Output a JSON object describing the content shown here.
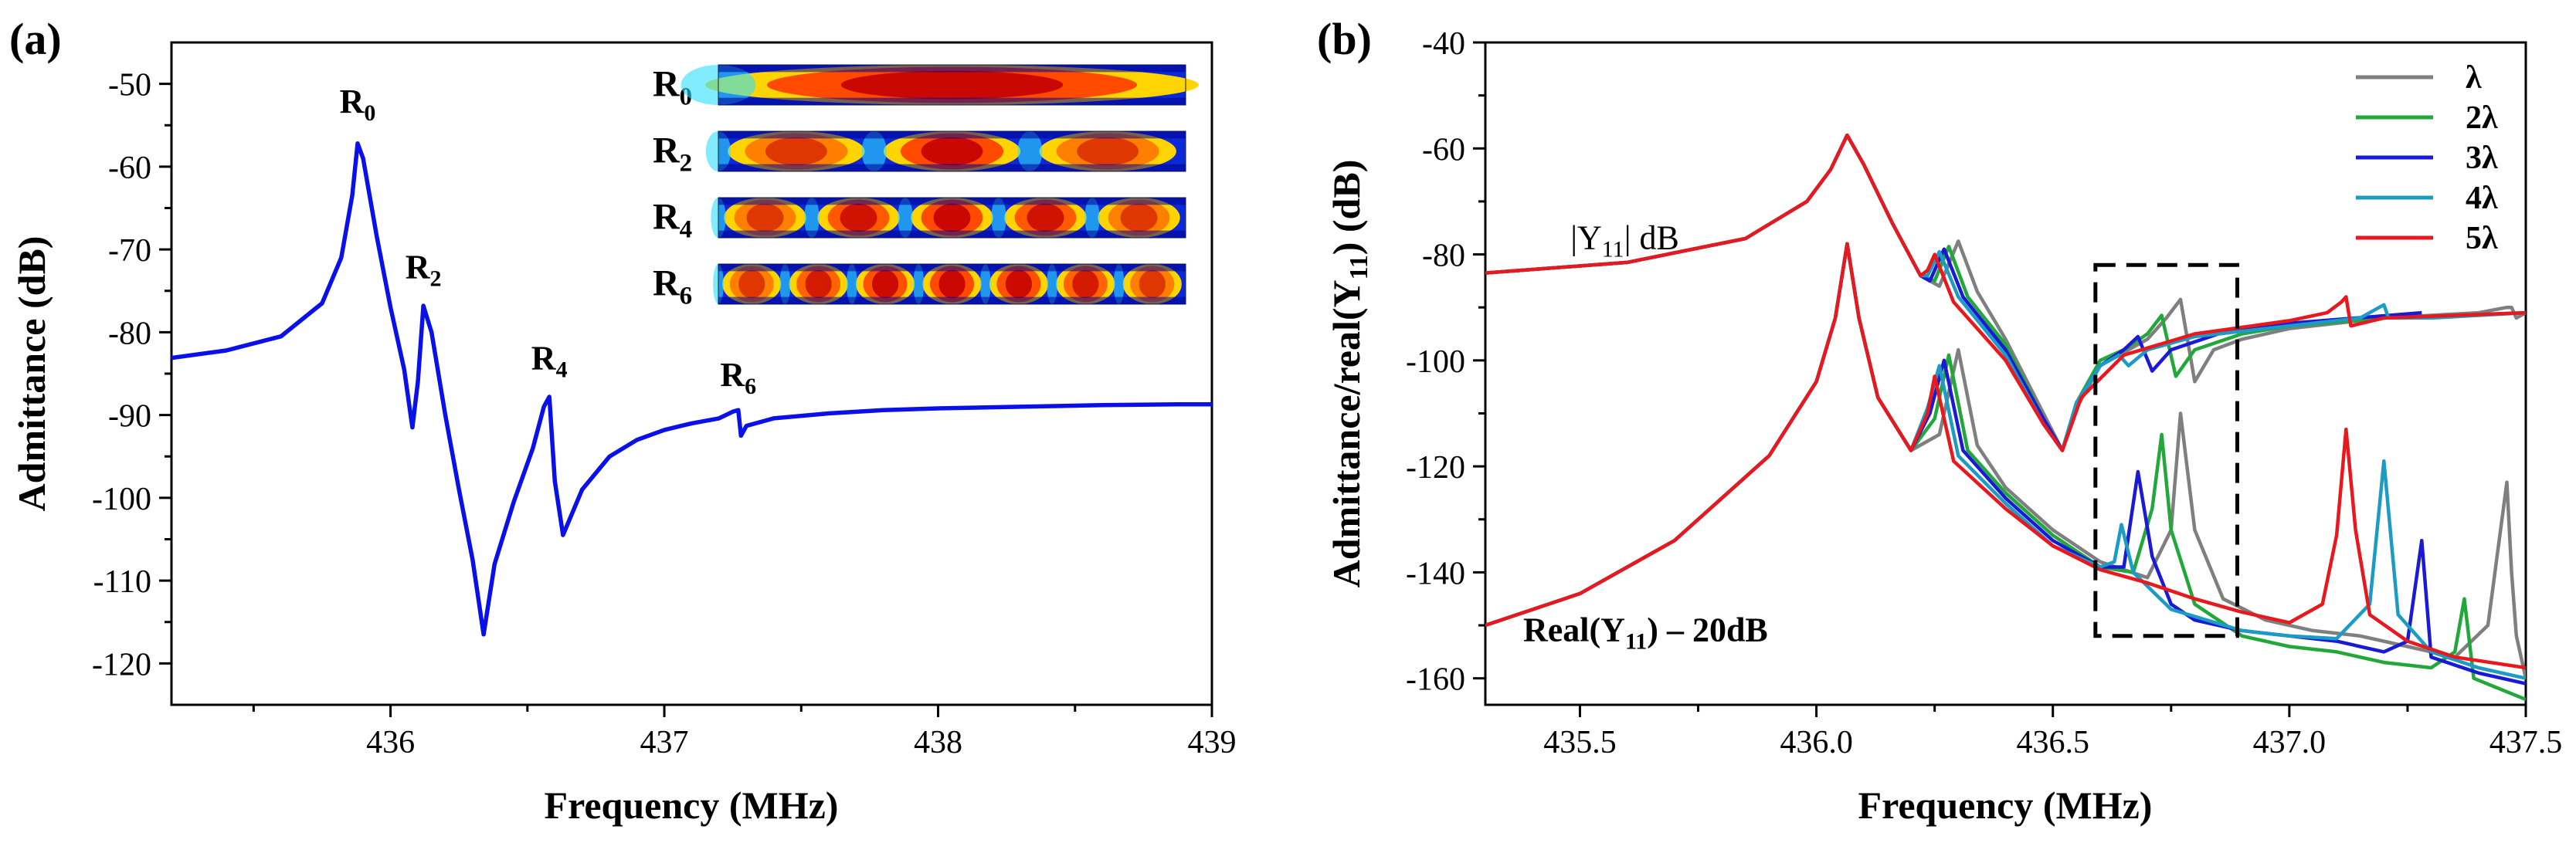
{
  "chart_data": [
    {
      "panel_label": "(a)",
      "type": "line",
      "xlabel": "Frequency (MHz)",
      "ylabel": "Admittance (dB)",
      "xlim": [
        435.2,
        439.0
      ],
      "ylim": [
        -125,
        -45
      ],
      "xticks": [
        436,
        437,
        438,
        439
      ],
      "yticks": [
        -50,
        -60,
        -70,
        -80,
        -90,
        -100,
        -110,
        -120
      ],
      "series": [
        {
          "name": "Admittance",
          "color": "#0a10e8",
          "x": [
            435.2,
            435.4,
            435.6,
            435.75,
            435.82,
            435.86,
            435.88,
            435.9,
            435.95,
            436.0,
            436.05,
            436.08,
            436.1,
            436.12,
            436.15,
            436.2,
            436.25,
            436.3,
            436.34,
            436.38,
            436.45,
            436.52,
            436.56,
            436.58,
            436.6,
            436.63,
            436.7,
            436.8,
            436.9,
            437.0,
            437.1,
            437.2,
            437.25,
            437.27,
            437.28,
            437.3,
            437.4,
            437.6,
            437.8,
            438.0,
            438.3,
            438.6,
            438.9,
            439.0
          ],
          "y": [
            -83.1,
            -82.2,
            -80.5,
            -76.5,
            -71.0,
            -63.5,
            -57.2,
            -59.0,
            -68.5,
            -77.0,
            -84.5,
            -91.5,
            -86.0,
            -76.8,
            -80.0,
            -90.0,
            -99.0,
            -107.5,
            -116.5,
            -108.0,
            -100.5,
            -94.0,
            -89.0,
            -87.8,
            -98.0,
            -104.5,
            -99.0,
            -95.0,
            -93.0,
            -91.8,
            -91.0,
            -90.4,
            -89.6,
            -89.4,
            -92.5,
            -91.3,
            -90.4,
            -89.8,
            -89.4,
            -89.2,
            -89.0,
            -88.8,
            -88.7,
            -88.7
          ]
        }
      ],
      "annotations": [
        {
          "label": "R",
          "subscript": "0",
          "x": 435.88,
          "y": -53.5
        },
        {
          "label": "R",
          "subscript": "2",
          "x": 436.12,
          "y": -73.5
        },
        {
          "label": "R",
          "subscript": "4",
          "x": 436.58,
          "y": -84.5
        },
        {
          "label": "R",
          "subscript": "6",
          "x": 437.27,
          "y": -86.5
        }
      ],
      "inset": {
        "rows": [
          {
            "label": "R",
            "subscript": "0",
            "antinodes": 1
          },
          {
            "label": "R",
            "subscript": "2",
            "antinodes": 3
          },
          {
            "label": "R",
            "subscript": "4",
            "antinodes": 5
          },
          {
            "label": "R",
            "subscript": "6",
            "antinodes": 7
          }
        ]
      }
    },
    {
      "panel_label": "(b)",
      "type": "line",
      "xlabel": "Frequency (MHz)",
      "ylabel_parts": [
        "Admittance/real(Y",
        "11",
        ") (dB)"
      ],
      "xlim": [
        435.3,
        437.5
      ],
      "ylim": [
        -165,
        -40
      ],
      "xticks": [
        435.5,
        436.0,
        436.5,
        437.0,
        437.5
      ],
      "xtick_labels": [
        "435.5",
        "436.0",
        "436.5",
        "437.0",
        "437.5"
      ],
      "yticks": [
        -40,
        -60,
        -80,
        -100,
        -120,
        -140,
        -160
      ],
      "text_annotations": [
        {
          "pre": "|Y",
          "sub": "11",
          "post": "| dB",
          "x": 435.48,
          "y": -79
        },
        {
          "pre": "Real(Y",
          "sub": "11",
          "post": ") – 20dB",
          "x": 435.38,
          "y": -153
        }
      ],
      "highlight_box": {
        "x0": 436.59,
        "x1": 436.89,
        "y0": -152,
        "y1": -82
      },
      "legend": {
        "position": "top-right"
      },
      "series": [
        {
          "name": "λ",
          "color": "#7f7f7f",
          "abs_x": [
            435.3,
            435.6,
            435.85,
            435.98,
            436.03,
            436.065,
            436.1,
            436.16,
            436.22,
            436.26,
            436.3,
            436.34,
            436.4,
            436.48,
            436.52,
            436.55,
            436.6,
            436.7,
            436.74,
            436.77,
            436.8,
            436.84,
            436.9,
            437.0,
            437.1,
            437.2,
            437.3,
            437.4,
            437.46,
            437.47,
            437.48,
            437.5
          ],
          "abs_y": [
            -83.5,
            -81.5,
            -77,
            -70,
            -64,
            -57.5,
            -63,
            -74,
            -84,
            -86,
            -77.5,
            -87,
            -96,
            -110,
            -117,
            -109,
            -101,
            -96,
            -92,
            -88.5,
            -104,
            -98,
            -96,
            -94,
            -93,
            -92,
            -91.5,
            -91,
            -90,
            -90,
            -92,
            -91
          ],
          "re_x": [
            435.3,
            435.5,
            435.7,
            435.9,
            436.0,
            436.04,
            436.065,
            436.09,
            436.13,
            436.2,
            436.26,
            436.3,
            436.34,
            436.4,
            436.5,
            436.6,
            436.7,
            436.75,
            436.77,
            436.8,
            436.86,
            436.95,
            437.05,
            437.15,
            437.25,
            437.35,
            437.42,
            437.46,
            437.47,
            437.48,
            437.5
          ],
          "re_y": [
            -150,
            -144,
            -134,
            -118,
            -104,
            -92,
            -78,
            -92,
            -107,
            -117,
            -114,
            -98,
            -116,
            -124,
            -132,
            -138,
            -141,
            -132,
            -110,
            -132,
            -145,
            -149,
            -151,
            -152,
            -154,
            -156,
            -150,
            -123,
            -140,
            -152,
            -160
          ]
        },
        {
          "name": "2λ",
          "color": "#22a83a",
          "abs_x": [
            435.3,
            435.6,
            435.85,
            435.98,
            436.03,
            436.065,
            436.1,
            436.16,
            436.22,
            436.25,
            436.28,
            436.32,
            436.4,
            436.48,
            436.52,
            436.55,
            436.6,
            436.65,
            436.7,
            436.73,
            436.76,
            436.8,
            436.9,
            437.0,
            437.2,
            437.5
          ],
          "abs_y": [
            -83.5,
            -81.5,
            -77,
            -70,
            -64,
            -57.5,
            -63,
            -74,
            -84,
            -85,
            -78.5,
            -88,
            -97,
            -111,
            -117,
            -108,
            -100,
            -98,
            -95,
            -91.5,
            -103,
            -98,
            -95,
            -93.5,
            -92,
            -91
          ],
          "re_x": [
            435.3,
            435.5,
            435.7,
            435.9,
            436.0,
            436.04,
            436.065,
            436.09,
            436.13,
            436.2,
            436.25,
            436.28,
            436.32,
            436.4,
            436.5,
            436.6,
            436.67,
            436.71,
            436.73,
            436.75,
            436.8,
            436.9,
            437.0,
            437.1,
            437.2,
            437.3,
            437.35,
            437.37,
            437.39,
            437.5
          ],
          "re_y": [
            -150,
            -144,
            -134,
            -118,
            -104,
            -92,
            -78,
            -92,
            -107,
            -117,
            -111,
            -99,
            -117,
            -125,
            -133,
            -139,
            -140,
            -128,
            -114,
            -132,
            -146,
            -152,
            -154,
            -155,
            -157,
            -158,
            -155,
            -145,
            -160,
            -164
          ]
        },
        {
          "name": "3λ",
          "color": "#1a1ad6",
          "abs_x": [
            435.3,
            435.6,
            435.85,
            435.98,
            436.03,
            436.065,
            436.1,
            436.16,
            436.22,
            436.24,
            436.27,
            436.31,
            436.4,
            436.48,
            436.52,
            436.55,
            436.6,
            436.65,
            436.68,
            436.71,
            436.75,
            436.85,
            437.0,
            437.28
          ],
          "abs_y": [
            -83.5,
            -81.5,
            -77,
            -70,
            -64,
            -57.5,
            -63,
            -74,
            -84,
            -85,
            -79,
            -88,
            -98,
            -111,
            -117,
            -108,
            -101,
            -98,
            -95.5,
            -102,
            -98,
            -95,
            -93,
            -91
          ],
          "re_x": [
            435.3,
            435.5,
            435.7,
            435.9,
            436.0,
            436.04,
            436.065,
            436.09,
            436.13,
            436.2,
            436.24,
            436.27,
            436.31,
            436.4,
            436.5,
            436.6,
            436.65,
            436.68,
            436.71,
            436.75,
            436.8,
            436.9,
            437.0,
            437.1,
            437.2,
            437.25,
            437.28,
            437.3,
            437.4,
            437.5
          ],
          "re_y": [
            -150,
            -144,
            -134,
            -118,
            -104,
            -92,
            -78,
            -92,
            -107,
            -117,
            -110,
            -100,
            -117,
            -126,
            -134,
            -139,
            -139,
            -121,
            -137,
            -146,
            -149,
            -151,
            -152,
            -153,
            -155,
            -153,
            -134,
            -156,
            -159,
            -161
          ]
        },
        {
          "name": "4λ",
          "color": "#1c9bc4",
          "abs_x": [
            435.3,
            435.6,
            435.85,
            435.98,
            436.03,
            436.065,
            436.1,
            436.16,
            436.22,
            436.235,
            436.26,
            436.3,
            436.4,
            436.48,
            436.52,
            436.55,
            436.6,
            436.64,
            436.66,
            436.7,
            436.8,
            437.0,
            437.15,
            437.19,
            437.2,
            437.21,
            437.3,
            437.4,
            437.5
          ],
          "abs_y": [
            -83.5,
            -81.5,
            -77,
            -70,
            -64,
            -57.5,
            -63,
            -74,
            -84,
            -84,
            -79.5,
            -88,
            -99,
            -112,
            -117,
            -108,
            -101,
            -99,
            -101,
            -98,
            -95.5,
            -93.5,
            -92,
            -90,
            -89.5,
            -92,
            -92,
            -91.5,
            -91
          ],
          "re_x": [
            435.3,
            435.5,
            435.7,
            435.9,
            436.0,
            436.04,
            436.065,
            436.09,
            436.13,
            436.2,
            436.235,
            436.26,
            436.3,
            436.4,
            436.5,
            436.6,
            436.63,
            436.645,
            436.67,
            436.75,
            436.9,
            437.0,
            437.1,
            437.17,
            437.2,
            437.23,
            437.3,
            437.4,
            437.5
          ],
          "re_y": [
            -150,
            -144,
            -134,
            -118,
            -104,
            -92,
            -78,
            -92,
            -107,
            -117,
            -109,
            -101,
            -118,
            -127,
            -135,
            -139,
            -138,
            -131,
            -140,
            -147,
            -151,
            -152,
            -152.5,
            -146,
            -119,
            -148,
            -155,
            -158,
            -160
          ]
        },
        {
          "name": "5λ",
          "color": "#e8191e",
          "abs_x": [
            435.3,
            435.6,
            435.85,
            435.98,
            436.03,
            436.065,
            436.1,
            436.16,
            436.22,
            436.235,
            436.25,
            436.29,
            436.4,
            436.48,
            436.52,
            436.56,
            436.65,
            436.8,
            437.0,
            437.08,
            437.11,
            437.12,
            437.13,
            437.2,
            437.35,
            437.5
          ],
          "abs_y": [
            -83.5,
            -81.5,
            -77,
            -70,
            -64,
            -57.5,
            -63,
            -74,
            -84,
            -83,
            -80,
            -89,
            -100,
            -112,
            -117,
            -107,
            -99,
            -95,
            -92.5,
            -91,
            -89,
            -88,
            -93.5,
            -92,
            -91.5,
            -91
          ],
          "re_x": [
            435.3,
            435.5,
            435.7,
            435.9,
            436.0,
            436.04,
            436.065,
            436.09,
            436.13,
            436.2,
            436.235,
            436.25,
            436.29,
            436.4,
            436.5,
            436.6,
            436.7,
            436.8,
            436.9,
            437.0,
            437.07,
            437.1,
            437.12,
            437.14,
            437.17,
            437.25,
            437.35,
            437.5
          ],
          "re_y": [
            -150,
            -144,
            -134,
            -118,
            -104,
            -92,
            -78,
            -92,
            -107,
            -117,
            -110,
            -103,
            -119,
            -128,
            -135,
            -139.5,
            -142,
            -145,
            -147.5,
            -149.5,
            -146,
            -133,
            -113,
            -132,
            -148,
            -153,
            -156,
            -158
          ]
        }
      ]
    }
  ]
}
